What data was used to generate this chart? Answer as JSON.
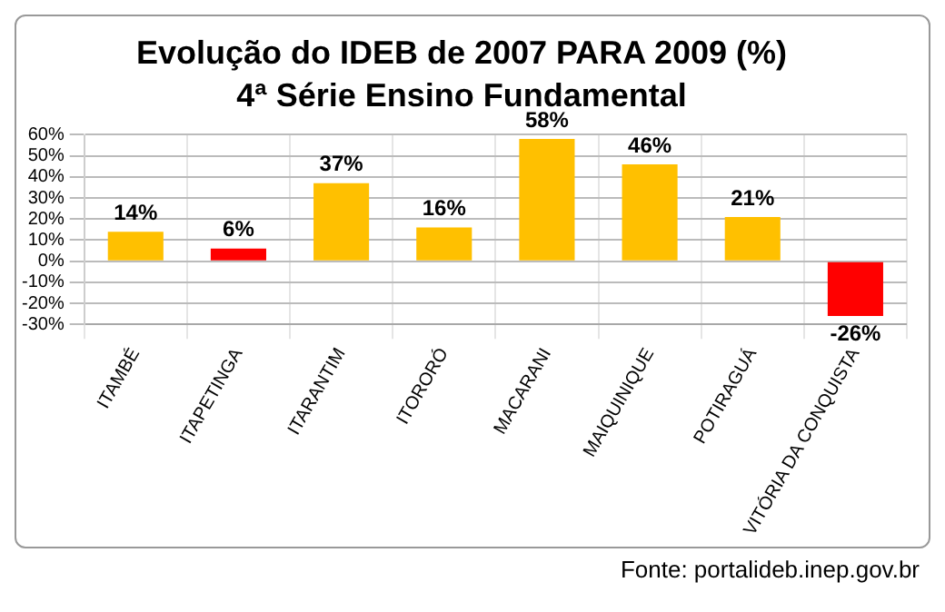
{
  "chart_data": {
    "type": "bar",
    "title": "Evolução do IDEB de 2007 PARA 2009 (%)",
    "subtitle": "4ª Série Ensino Fundamental",
    "categories": [
      "ITAMBÉ",
      "ITAPETINGA",
      "ITARANTIM",
      "ITORORÓ",
      "MACARANI",
      "MAIQUINIQUE",
      "POTIRAGUÁ",
      "VITÓRIA DA CONQUISTA"
    ],
    "values": [
      14,
      6,
      37,
      16,
      58,
      46,
      21,
      -26
    ],
    "colors": [
      "#ffc000",
      "#ff0000",
      "#ffc000",
      "#ffc000",
      "#ffc000",
      "#ffc000",
      "#ffc000",
      "#ff0000"
    ],
    "value_labels": [
      "14%",
      "6%",
      "37%",
      "16%",
      "58%",
      "46%",
      "21%",
      "-26%"
    ],
    "ylim": [
      -30,
      60
    ],
    "yticks": [
      {
        "value": -30,
        "label": "-30%"
      },
      {
        "value": -20,
        "label": "-20%"
      },
      {
        "value": -10,
        "label": "-10%"
      },
      {
        "value": 0,
        "label": "0%"
      },
      {
        "value": 10,
        "label": "10%"
      },
      {
        "value": 20,
        "label": "20%"
      },
      {
        "value": 30,
        "label": "30%"
      },
      {
        "value": 40,
        "label": "40%"
      },
      {
        "value": 50,
        "label": "50%"
      },
      {
        "value": 60,
        "label": "60%"
      }
    ],
    "grid": true,
    "legend": false,
    "annotations": [
      "Fonte: portalideb.inep.gov.br"
    ]
  }
}
